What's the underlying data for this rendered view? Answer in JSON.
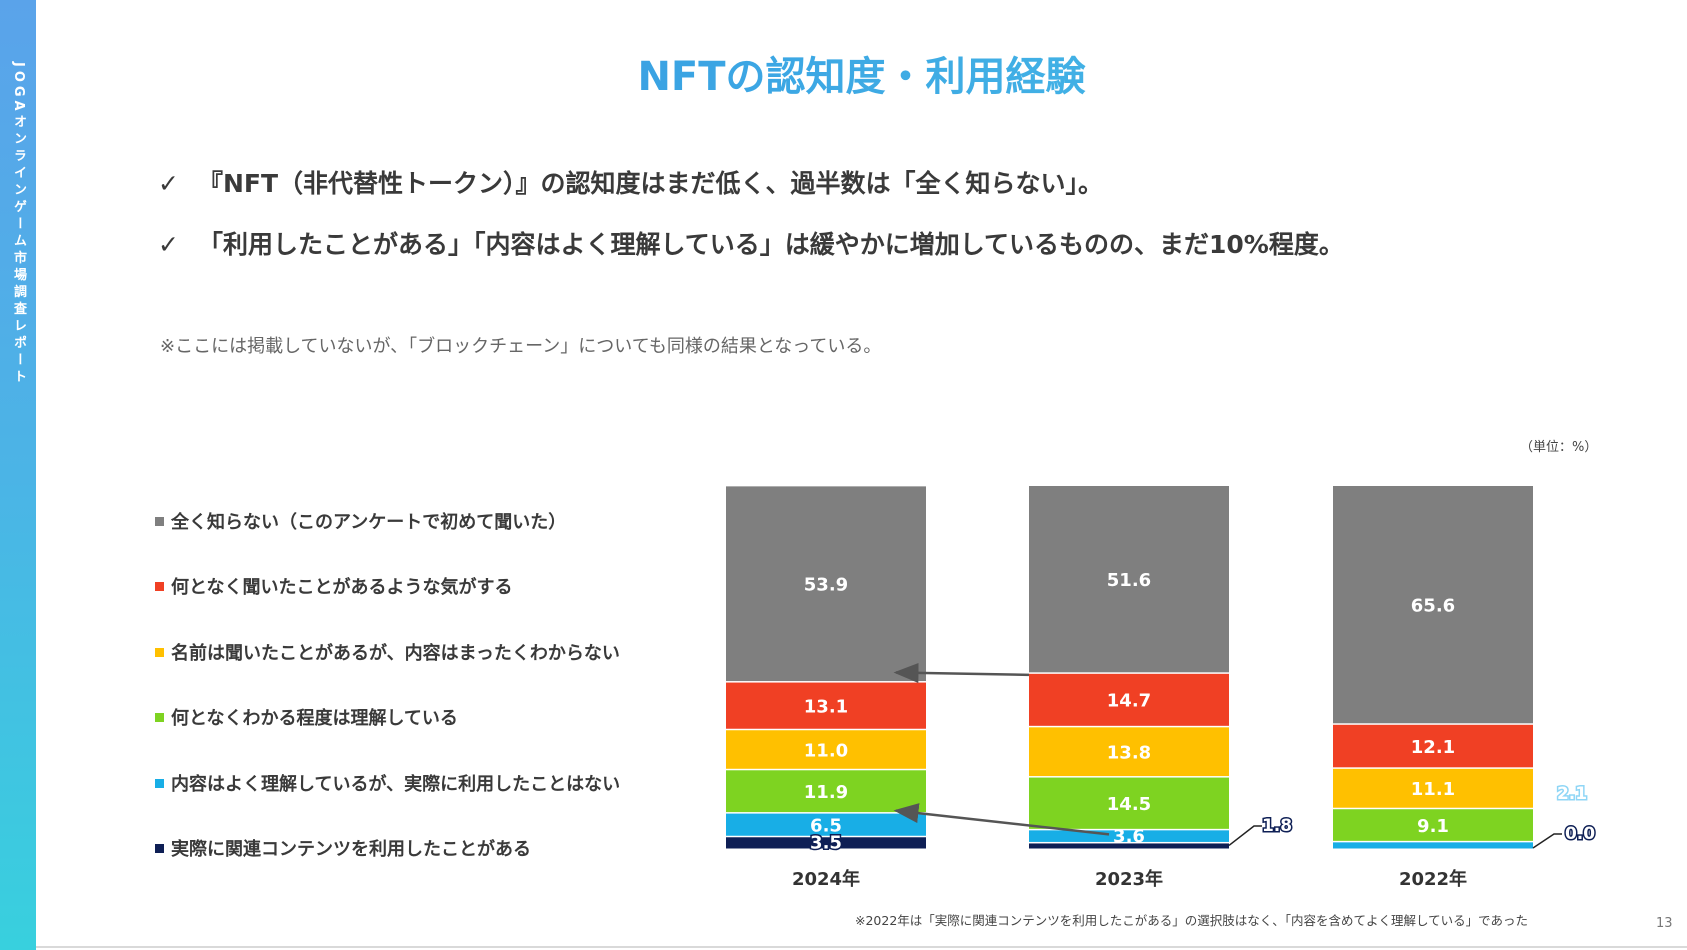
{
  "sidebar": {
    "text": "JOGAオンラインゲーム市場調査レポート"
  },
  "title": "NFTの認知度・利用経験",
  "bullets": [
    {
      "check": "✓",
      "text": "『NFT（非代替性トークン）』の認知度はまだ低く、過半数は「全く知らない」。"
    },
    {
      "check": "✓",
      "text": "「利用したことがある」「内容はよく理解している」は緩やかに増加しているものの、まだ10%程度。"
    }
  ],
  "note": "※ここには掲載していないが、「ブロックチェーン」についても同様の結果となっている。",
  "unit_label": "（単位：%）",
  "legend": [
    {
      "label": "全く知らない（このアンケートで初めて聞いた）",
      "color": "#7f7f7f"
    },
    {
      "label": "何となく聞いたことがあるような気がする",
      "color": "#f04024"
    },
    {
      "label": "名前は聞いたことがあるが、内容はまったくわからない",
      "color": "#ffc000"
    },
    {
      "label": "何となくわかる程度は理解している",
      "color": "#7ed321"
    },
    {
      "label": "内容はよく理解しているが、実際に利用したことはない",
      "color": "#18aee6"
    },
    {
      "label": "実際に関連コンテンツを利用したことがある",
      "color": "#0e1f55"
    }
  ],
  "chart_data": {
    "type": "bar",
    "stacked": true,
    "categories": [
      "2024年",
      "2023年",
      "2022年"
    ],
    "series": [
      {
        "name": "実際に関連コンテンツを利用したことがある",
        "color": "#0e1f55",
        "values": [
          3.5,
          1.8,
          0.0
        ]
      },
      {
        "name": "内容はよく理解しているが、実際に利用したことはない",
        "color": "#18aee6",
        "values": [
          6.5,
          3.6,
          2.1
        ]
      },
      {
        "name": "何となくわかる程度は理解している",
        "color": "#7ed321",
        "values": [
          11.9,
          14.5,
          9.1
        ]
      },
      {
        "name": "名前は聞いたことがあるが、内容はまったくわからない",
        "color": "#ffc000",
        "values": [
          11.0,
          13.8,
          11.1
        ]
      },
      {
        "name": "何となく聞いたことがあるような気がする",
        "color": "#f04024",
        "values": [
          13.1,
          14.7,
          12.1
        ]
      },
      {
        "name": "全く知らない（このアンケートで初めて聞いた）",
        "color": "#7f7f7f",
        "values": [
          53.9,
          51.6,
          65.6
        ]
      }
    ],
    "value_labels": [
      [
        "3.5",
        "1.8",
        "0.0"
      ],
      [
        "6.5",
        "3.6",
        "2.1"
      ],
      [
        "11.9",
        "14.5",
        "9.1"
      ],
      [
        "11.0",
        "13.8",
        "11.1"
      ],
      [
        "13.1",
        "14.7",
        "12.1"
      ],
      [
        "53.9",
        "51.6",
        "65.6"
      ]
    ],
    "ylim": [
      0,
      100
    ],
    "unit": "%",
    "arrows": [
      {
        "from": "2023年",
        "to": "2024年",
        "boundary": "全く知らない"
      },
      {
        "from": "2023年",
        "to": "2024年",
        "boundary": "内容はよく理解しているが、実際に利用したことはない"
      }
    ]
  },
  "footnote": "※2022年は「実際に関連コンテンツを利用したこがある」の選択肢はなく、「内容を含めてよく理解している」であった",
  "page_number": "13"
}
